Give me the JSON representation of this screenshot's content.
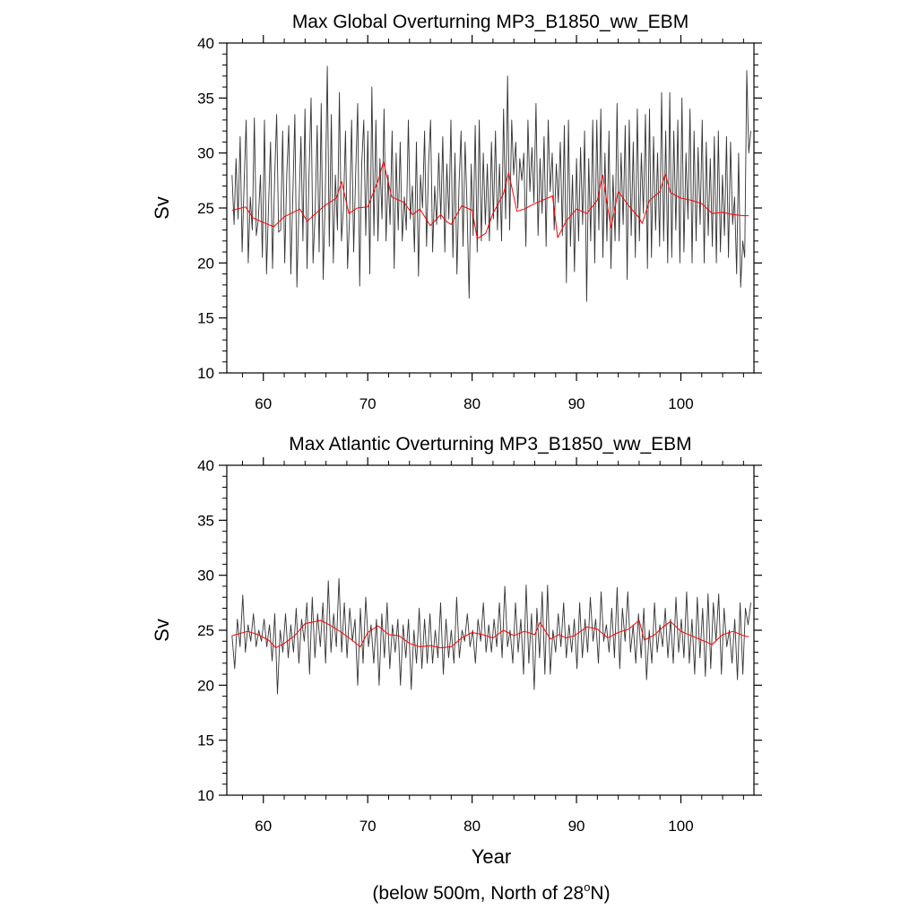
{
  "figure": {
    "xlabel": "Year",
    "footnote_main": "(below 500m, North of 28",
    "footnote_sup": "o",
    "footnote_end": "N)"
  },
  "chart_data": [
    {
      "type": "line",
      "title": "Max Global Overturning MP3_B1850_ww_EBM",
      "xlabel": "",
      "ylabel": "Sv",
      "xlim": [
        56.5,
        107
      ],
      "ylim": [
        10,
        40
      ],
      "xticks": [
        60,
        70,
        80,
        90,
        100
      ],
      "yticks": [
        10,
        15,
        20,
        25,
        30,
        35,
        40
      ],
      "grid": false,
      "series": [
        {
          "color": "#333333",
          "values": [
            28,
            23.5,
            29.5,
            24,
            31.5,
            21,
            27.5,
            33,
            20,
            26,
            23,
            33.2,
            22.5,
            24,
            28,
            20.5,
            33,
            19,
            25,
            31,
            19.5,
            27.5,
            33.5,
            22.8,
            23,
            32,
            20,
            28,
            32.5,
            19,
            26,
            33.5,
            17.8,
            25,
            31.5,
            22,
            34,
            19.5,
            28,
            35,
            20,
            24.5,
            32.5,
            21,
            34.5,
            18.5,
            26,
            37.9,
            21.5,
            33.5,
            20,
            28,
            23,
            35.5,
            22,
            25,
            32,
            19.5,
            24,
            33,
            21,
            28,
            34.5,
            17.9,
            29,
            33,
            22.5,
            32,
            19,
            36,
            22.5,
            33,
            22,
            29.5,
            24,
            34,
            22,
            28,
            23.5,
            32,
            19.5,
            30,
            23,
            31,
            22,
            26,
            23,
            33,
            24,
            27,
            21,
            31,
            18.8,
            28,
            25,
            32,
            21.5,
            29,
            33,
            21,
            27,
            23.5,
            30,
            24,
            31.5,
            21,
            29,
            24,
            33,
            20.5,
            30,
            19,
            27,
            32,
            21.5,
            31,
            25,
            16.8,
            29,
            22.5,
            32.5,
            21,
            33,
            22,
            30,
            23.5,
            29,
            22,
            31,
            24,
            32,
            23,
            29,
            22,
            34,
            24,
            37,
            23,
            33,
            28,
            31,
            25,
            29.5,
            27.5,
            30,
            21.5,
            33,
            26.5,
            30.5,
            25.5,
            34.5,
            22.5,
            29.5,
            24.5,
            31.5,
            21.5,
            33,
            26.5,
            30,
            23,
            29,
            25.5,
            31,
            22.5,
            32.5,
            18.2,
            33,
            21.5,
            28,
            19.2,
            29.5,
            22,
            30.5,
            23.5,
            32,
            16.5,
            29.5,
            22,
            33,
            20,
            33,
            23,
            34,
            20.5,
            30,
            22,
            32,
            19.5,
            28,
            22,
            34.5,
            22,
            30,
            23.5,
            32.5,
            18.5,
            33,
            22.5,
            31,
            20.5,
            34,
            22,
            30,
            24.5,
            33.5,
            19.5,
            34,
            20.5,
            31.5,
            23,
            30,
            21.5,
            35.5,
            22,
            32,
            20,
            35.5,
            20.5,
            32,
            23,
            33,
            20,
            35,
            21,
            30,
            24,
            34,
            20,
            32,
            22,
            30.5,
            23.5,
            33,
            20,
            31,
            22.5,
            29.5,
            21.5,
            31.5,
            20,
            32,
            21,
            28,
            22.5,
            31.5,
            20.5,
            31,
            23.5,
            26,
            19,
            30,
            17.8,
            22,
            20.5,
            37.5,
            30,
            32
          ]
        },
        {
          "color": "#ff0000",
          "x": [
            57,
            58.3,
            59,
            60.2,
            61,
            62,
            63.5,
            64.2,
            65,
            66,
            67,
            67.5,
            68.2,
            69,
            70,
            71,
            71.5,
            72.3,
            73.5,
            74.3,
            75,
            76,
            77,
            77.5,
            78,
            79,
            80,
            80.5,
            81.3,
            82,
            83,
            83.5,
            84.3,
            85,
            86,
            87,
            87.7,
            88.2,
            89,
            90,
            91,
            92,
            92.5,
            93.3,
            94,
            95,
            96,
            96.3,
            97,
            98,
            98.5,
            99,
            100,
            101,
            102,
            103,
            104,
            105,
            106,
            106.5
          ],
          "values": [
            24.8,
            25.1,
            24.1,
            23.6,
            23.3,
            24.2,
            24.9,
            23.8,
            24.5,
            25.3,
            25.9,
            27.4,
            24.5,
            25,
            25.1,
            27.5,
            29.2,
            26,
            25.5,
            24.4,
            24.9,
            23.4,
            24.4,
            23.8,
            23.5,
            25.2,
            24.8,
            22.2,
            22.7,
            24.5,
            26.3,
            28.2,
            24.7,
            24.9,
            25.4,
            25.8,
            26.1,
            22.3,
            23.8,
            24.9,
            24.5,
            25.7,
            28,
            23.2,
            26.5,
            25.2,
            24.1,
            23.6,
            25.7,
            26.5,
            28.1,
            26.4,
            25.9,
            25.7,
            25.4,
            24.5,
            24.6,
            24.4,
            24.3,
            24.3
          ]
        }
      ]
    },
    {
      "type": "line",
      "title": "Max Atlantic Overturning MP3_B1850_ww_EBM",
      "xlabel": "Year",
      "ylabel": "Sv",
      "xlim": [
        56.5,
        107
      ],
      "ylim": [
        10,
        40
      ],
      "xticks": [
        60,
        70,
        80,
        90,
        100
      ],
      "yticks": [
        10,
        15,
        20,
        25,
        30,
        35,
        40
      ],
      "grid": false,
      "series": [
        {
          "color": "#333333",
          "values": [
            24.5,
            21.5,
            26,
            23.5,
            28.2,
            23,
            25.5,
            24,
            26.5,
            23.5,
            25,
            24,
            26,
            23.5,
            25.5,
            22.2,
            26.5,
            19.2,
            25,
            23,
            26.5,
            22.5,
            25.5,
            23,
            27,
            22,
            26,
            24,
            27.5,
            21,
            28,
            22.5,
            26.5,
            23.5,
            27.5,
            22,
            29.5,
            23,
            26.5,
            23.5,
            29.7,
            23,
            27.5,
            22.5,
            27,
            24,
            26,
            20,
            27,
            22,
            28,
            23.5,
            25.5,
            22,
            26,
            20,
            26.5,
            22.5,
            27.5,
            21.5,
            25.5,
            23,
            26,
            20,
            25.5,
            22.5,
            26,
            19.6,
            25,
            22,
            27,
            21.5,
            26,
            22,
            26.5,
            22,
            25,
            22.5,
            27.5,
            21,
            26,
            22.5,
            25,
            22,
            28,
            22.5,
            25,
            24,
            26.5,
            23.5,
            25,
            22,
            26,
            24,
            27.5,
            23,
            25.5,
            23,
            26,
            23.5,
            27.5,
            22.5,
            29,
            23.5,
            25,
            22,
            27.5,
            23,
            26,
            21,
            29.1,
            22,
            26.5,
            19.6,
            27,
            22.5,
            28.5,
            21,
            29.1,
            21,
            25,
            23,
            26.5,
            23.5,
            27.5,
            22.5,
            25.5,
            23,
            26,
            21.5,
            27.5,
            22.5,
            26,
            23,
            28,
            24,
            26,
            22,
            28.5,
            24,
            25.5,
            23,
            27,
            22.5,
            28.9,
            21.5,
            27,
            24,
            28.5,
            23,
            25.5,
            22,
            26.5,
            22.5,
            27,
            20.5,
            25,
            22,
            27.5,
            23,
            25.5,
            23.5,
            27,
            22.5,
            26,
            22,
            28,
            23,
            26,
            22.5,
            28.5,
            22,
            26,
            21,
            28,
            22.5,
            27,
            20.8,
            28.3,
            21.5,
            27.5,
            24,
            28.3,
            21,
            27,
            23.5,
            25,
            22,
            26,
            20.5,
            27.5,
            21,
            27,
            25.5,
            27.5
          ]
        },
        {
          "color": "#ff0000",
          "x": [
            57,
            58.5,
            59.5,
            60.5,
            61.2,
            62,
            63,
            64,
            65,
            65.5,
            66.5,
            67.5,
            68.5,
            69.3,
            70,
            71,
            72,
            73,
            74,
            75,
            76,
            77,
            78,
            79,
            80,
            81,
            82,
            83,
            84,
            85,
            86,
            86.5,
            87.5,
            88.3,
            89,
            89.8,
            91,
            92,
            93,
            94,
            95,
            96,
            96.5,
            97.5,
            98.3,
            99,
            100,
            101,
            102,
            103,
            104,
            105,
            106,
            106.5
          ],
          "values": [
            24.5,
            24.9,
            24.6,
            24.1,
            23.4,
            23.8,
            24.5,
            25.6,
            25.8,
            25.9,
            25.4,
            24.8,
            24.1,
            23.5,
            24.8,
            25.4,
            24.6,
            24.5,
            23.8,
            23.5,
            23.6,
            23.4,
            23.5,
            24.3,
            24.8,
            24.6,
            24.3,
            25,
            24.5,
            24.9,
            24.6,
            25.7,
            24.2,
            24.6,
            24.3,
            24.5,
            25.3,
            25.1,
            24.3,
            24.8,
            25.1,
            25.9,
            24.1,
            24.6,
            25.3,
            25.8,
            24.9,
            24.5,
            24.1,
            23.7,
            24.6,
            24.9,
            24.5,
            24.4
          ]
        }
      ]
    }
  ]
}
